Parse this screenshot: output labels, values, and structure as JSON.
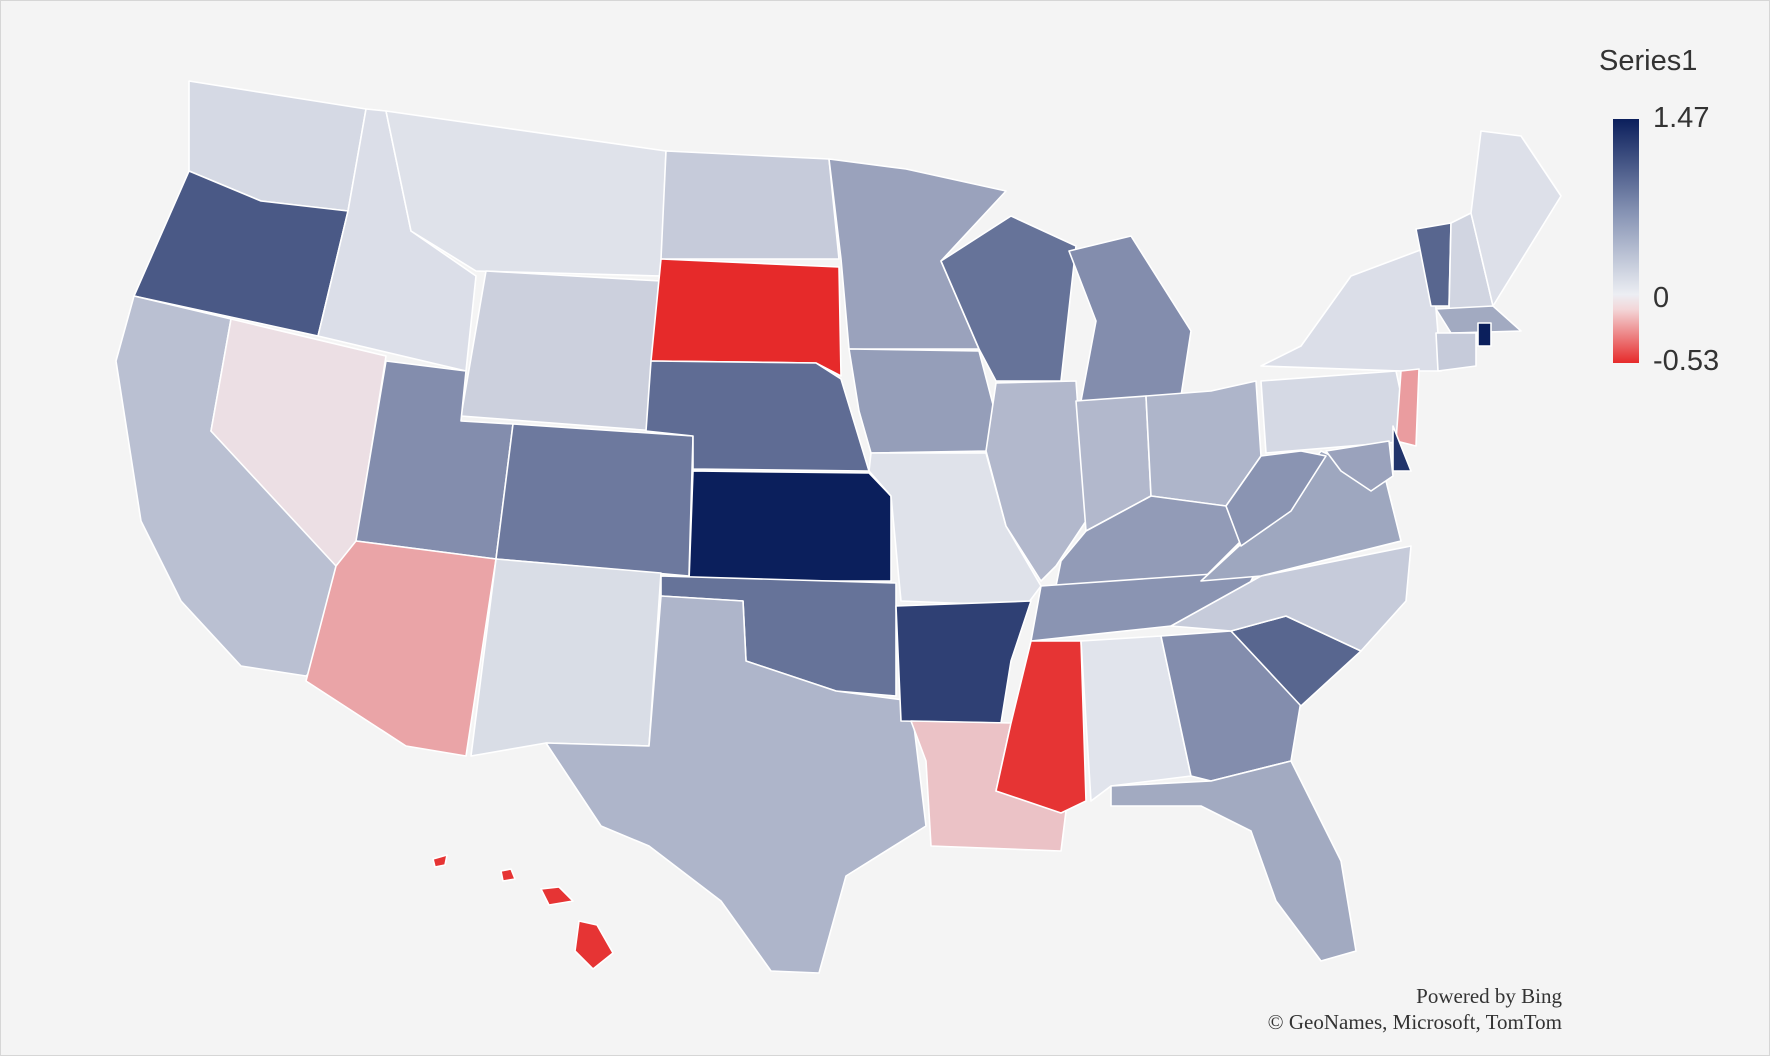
{
  "legend": {
    "title": "Series1",
    "max_label": "1.47",
    "zero_label": "0",
    "min_label": "-0.53",
    "min_value": -0.53,
    "max_value": 1.47,
    "high_color": "#0b1f5c",
    "neutral_color": "#eceef3",
    "low_color": "#e62a2a"
  },
  "attribution": {
    "powered_by": "Powered by Bing",
    "copyright": "© GeoNames, Microsoft, TomTom"
  },
  "states": [
    {
      "name": "WA",
      "value": 0.1
    },
    {
      "name": "OR",
      "value": 1.0
    },
    {
      "name": "CA",
      "value": 0.25
    },
    {
      "name": "NV",
      "value": -0.03
    },
    {
      "name": "ID",
      "value": 0.07
    },
    {
      "name": "MT",
      "value": 0.05
    },
    {
      "name": "WY",
      "value": 0.15
    },
    {
      "name": "UT",
      "value": 0.6
    },
    {
      "name": "AZ",
      "value": -0.18
    },
    {
      "name": "CO",
      "value": 0.75
    },
    {
      "name": "NM",
      "value": 0.08
    },
    {
      "name": "ND",
      "value": 0.18
    },
    {
      "name": "SD",
      "value": -0.53
    },
    {
      "name": "NE",
      "value": 0.85
    },
    {
      "name": "KS",
      "value": 1.47
    },
    {
      "name": "OK",
      "value": 0.8
    },
    {
      "name": "TX",
      "value": 0.32
    },
    {
      "name": "MN",
      "value": 0.45
    },
    {
      "name": "IA",
      "value": 0.48
    },
    {
      "name": "MO",
      "value": 0.05
    },
    {
      "name": "AR",
      "value": 1.2
    },
    {
      "name": "LA",
      "value": -0.1
    },
    {
      "name": "WI",
      "value": 0.8
    },
    {
      "name": "IL",
      "value": 0.3
    },
    {
      "name": "MI",
      "value": 0.6
    },
    {
      "name": "IN",
      "value": 0.3
    },
    {
      "name": "OH",
      "value": 0.32
    },
    {
      "name": "KY",
      "value": 0.5
    },
    {
      "name": "TN",
      "value": 0.55
    },
    {
      "name": "MS",
      "value": -0.5
    },
    {
      "name": "AL",
      "value": 0.04
    },
    {
      "name": "GA",
      "value": 0.6
    },
    {
      "name": "FL",
      "value": 0.4
    },
    {
      "name": "SC",
      "value": 0.9
    },
    {
      "name": "NC",
      "value": 0.18
    },
    {
      "name": "VA",
      "value": 0.42
    },
    {
      "name": "WV",
      "value": 0.55
    },
    {
      "name": "PA",
      "value": 0.1
    },
    {
      "name": "NY",
      "value": 0.07
    },
    {
      "name": "NJ",
      "value": -0.2
    },
    {
      "name": "DE",
      "value": 1.3
    },
    {
      "name": "MD",
      "value": 0.45
    },
    {
      "name": "VT",
      "value": 0.9
    },
    {
      "name": "NH",
      "value": 0.12
    },
    {
      "name": "ME",
      "value": 0.06
    },
    {
      "name": "MA",
      "value": 0.4
    },
    {
      "name": "CT",
      "value": 0.18
    },
    {
      "name": "RI",
      "value": 1.47
    },
    {
      "name": "HI",
      "value": -0.5
    }
  ]
}
